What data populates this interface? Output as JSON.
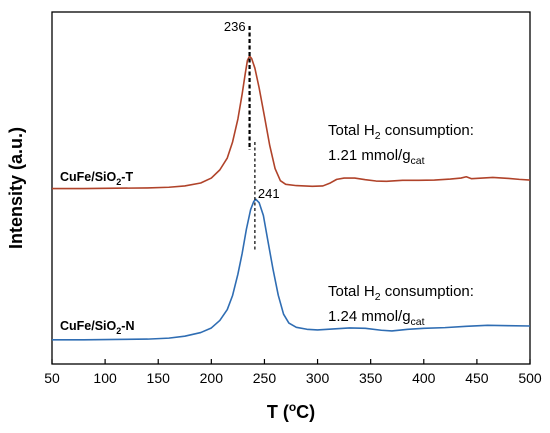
{
  "chart_data": {
    "type": "line",
    "xlabel": "T (°C)",
    "ylabel": "Intensity (a.u.)",
    "xlim": [
      50,
      500
    ],
    "ylim": [
      0,
      1
    ],
    "x_ticks": [
      "50",
      "100",
      "150",
      "200",
      "250",
      "300",
      "350",
      "400",
      "450",
      "500"
    ],
    "grid": false,
    "series": [
      {
        "name": "CuFe/SiO2-T",
        "color": "#b0432a",
        "peak": {
          "x": 236,
          "label": "236"
        },
        "points": [
          [
            50,
            0.48
          ],
          [
            80,
            0.48
          ],
          [
            110,
            0.481
          ],
          [
            140,
            0.482
          ],
          [
            160,
            0.484
          ],
          [
            175,
            0.488
          ],
          [
            190,
            0.497
          ],
          [
            200,
            0.512
          ],
          [
            208,
            0.537
          ],
          [
            215,
            0.573
          ],
          [
            220,
            0.622
          ],
          [
            225,
            0.692
          ],
          [
            229,
            0.768
          ],
          [
            232,
            0.832
          ],
          [
            234,
            0.871
          ],
          [
            236,
            0.884
          ],
          [
            238,
            0.876
          ],
          [
            241,
            0.847
          ],
          [
            245,
            0.787
          ],
          [
            250,
            0.7
          ],
          [
            255,
            0.611
          ],
          [
            260,
            0.541
          ],
          [
            265,
            0.504
          ],
          [
            270,
            0.493
          ],
          [
            280,
            0.489
          ],
          [
            295,
            0.487
          ],
          [
            305,
            0.488
          ],
          [
            312,
            0.497
          ],
          [
            318,
            0.508
          ],
          [
            325,
            0.512
          ],
          [
            335,
            0.512
          ],
          [
            345,
            0.507
          ],
          [
            355,
            0.503
          ],
          [
            365,
            0.502
          ],
          [
            380,
            0.505
          ],
          [
            395,
            0.505
          ],
          [
            410,
            0.506
          ],
          [
            425,
            0.509
          ],
          [
            435,
            0.512
          ],
          [
            440,
            0.516
          ],
          [
            445,
            0.51
          ],
          [
            455,
            0.512
          ],
          [
            465,
            0.514
          ],
          [
            480,
            0.511
          ],
          [
            490,
            0.508
          ],
          [
            500,
            0.506
          ]
        ],
        "label_text": "CuFe/SiO",
        "label_sub": "2",
        "label_suffix": "-T",
        "annotation": {
          "line1_prefix": "Total H",
          "line1_sub": "2",
          "line1_suffix": " consumption:",
          "line2_prefix": "1.21 mmol/g",
          "line2_sub": "cat"
        }
      },
      {
        "name": "CuFe/SiO2-N",
        "color": "#2f6db3",
        "peak": {
          "x": 241,
          "label": "241"
        },
        "points": [
          [
            50,
            0.019
          ],
          [
            80,
            0.019
          ],
          [
            110,
            0.02
          ],
          [
            140,
            0.021
          ],
          [
            160,
            0.024
          ],
          [
            175,
            0.03
          ],
          [
            190,
            0.041
          ],
          [
            200,
            0.055
          ],
          [
            208,
            0.078
          ],
          [
            215,
            0.111
          ],
          [
            220,
            0.154
          ],
          [
            225,
            0.219
          ],
          [
            229,
            0.282
          ],
          [
            233,
            0.356
          ],
          [
            237,
            0.416
          ],
          [
            240,
            0.441
          ],
          [
            242,
            0.447
          ],
          [
            245,
            0.437
          ],
          [
            249,
            0.398
          ],
          [
            253,
            0.325
          ],
          [
            258,
            0.235
          ],
          [
            263,
            0.155
          ],
          [
            268,
            0.097
          ],
          [
            273,
            0.07
          ],
          [
            280,
            0.057
          ],
          [
            290,
            0.051
          ],
          [
            300,
            0.049
          ],
          [
            315,
            0.052
          ],
          [
            330,
            0.055
          ],
          [
            345,
            0.054
          ],
          [
            360,
            0.048
          ],
          [
            370,
            0.046
          ],
          [
            385,
            0.051
          ],
          [
            400,
            0.054
          ],
          [
            420,
            0.056
          ],
          [
            440,
            0.06
          ],
          [
            460,
            0.063
          ],
          [
            480,
            0.062
          ],
          [
            500,
            0.061
          ]
        ],
        "label_text": "CuFe/SiO",
        "label_sub": "2",
        "label_suffix": "-N",
        "annotation": {
          "line1_prefix": "Total H",
          "line1_sub": "2",
          "line1_suffix": " consumption:",
          "line2_prefix": "1.24 mmol/g",
          "line2_sub": "cat"
        }
      }
    ]
  }
}
